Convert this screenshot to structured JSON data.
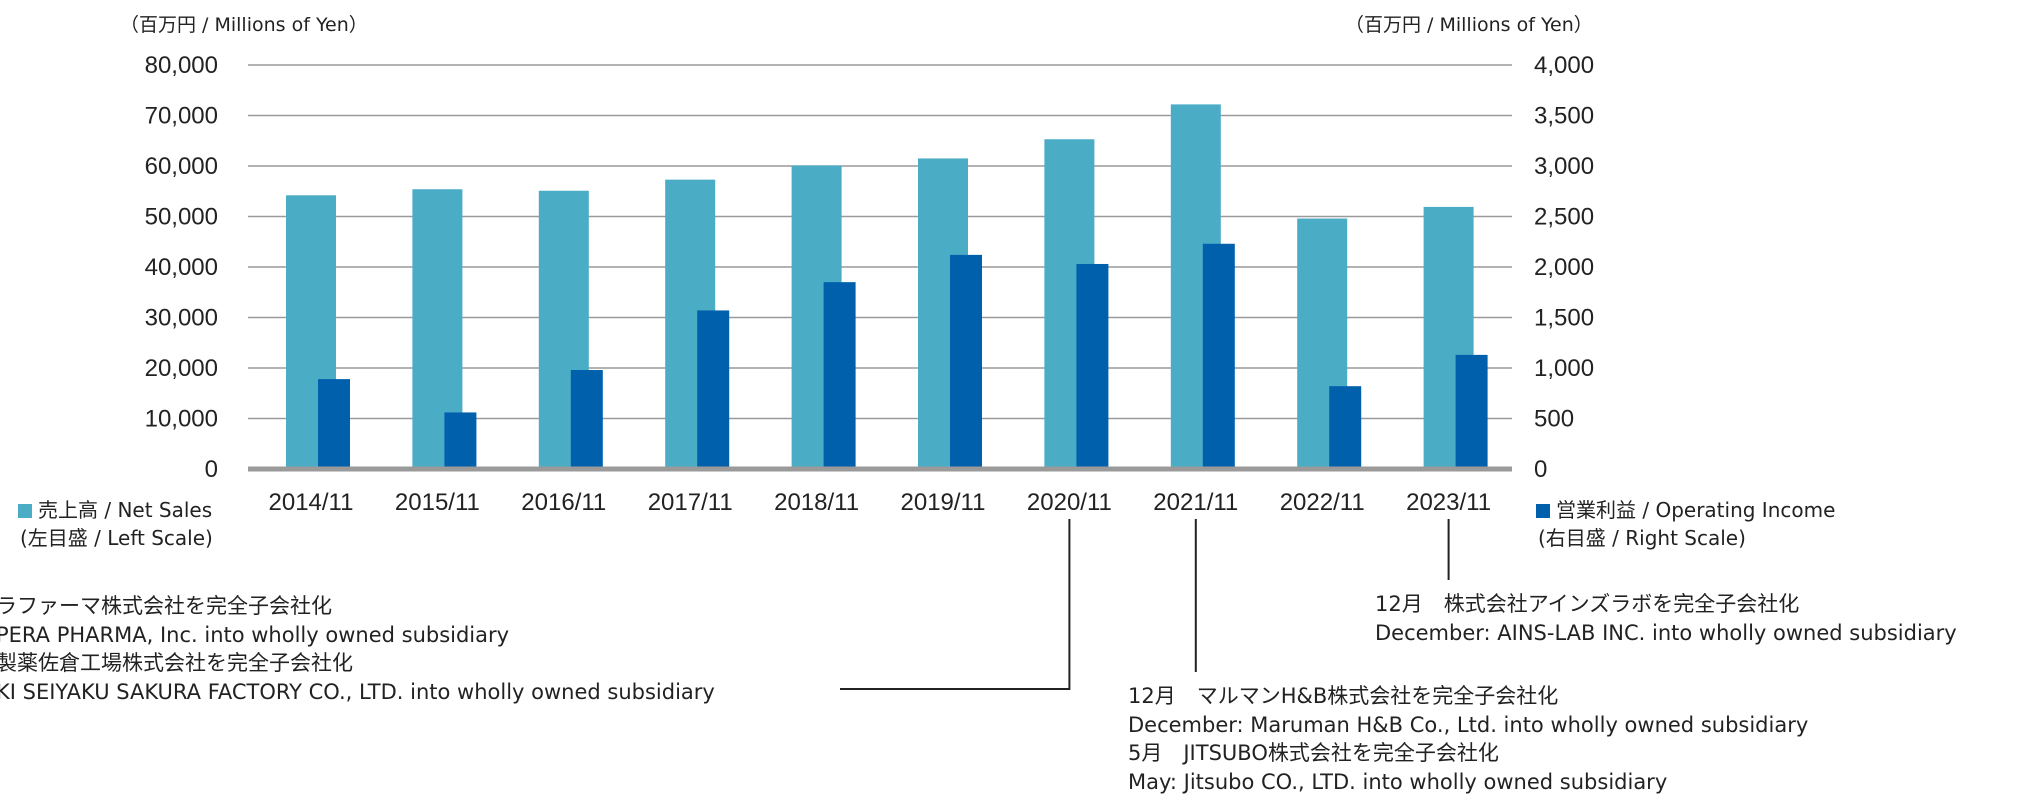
{
  "chart_data": {
    "type": "bar",
    "categories": [
      "2014/11",
      "2015/11",
      "2016/11",
      "2017/11",
      "2018/11",
      "2019/11",
      "2020/11",
      "2021/11",
      "2022/11",
      "2023/11"
    ],
    "series": [
      {
        "name": "売上高 / Net Sales",
        "axis": "left",
        "color": "#4bacc6",
        "values": [
          54200,
          55400,
          55100,
          57300,
          60100,
          61500,
          65300,
          72200,
          49600,
          51900
        ]
      },
      {
        "name": "営業利益 / Operating Income",
        "axis": "right",
        "color": "#0060ac",
        "values": [
          890,
          560,
          980,
          1570,
          1850,
          2120,
          2030,
          2230,
          820,
          1130
        ]
      }
    ],
    "left_axis": {
      "unit": "（百万円 / Millions of Yen）",
      "min": 0,
      "max": 80000,
      "step": 10000,
      "ticks": [
        "0",
        "10,000",
        "20,000",
        "30,000",
        "40,000",
        "50,000",
        "60,000",
        "70,000",
        "80,000"
      ]
    },
    "right_axis": {
      "unit": "（百万円 / Millions of Yen）",
      "min": 0,
      "max": 4000,
      "step": 500,
      "ticks": [
        "0",
        "500",
        "1,000",
        "1,500",
        "2,000",
        "2,500",
        "3,000",
        "3,500",
        "4,000"
      ]
    },
    "grid": true
  },
  "legend": {
    "left": {
      "label": "売上高 / Net Sales",
      "scale": "(左目盛 / Left Scale)",
      "color": "#4bacc6"
    },
    "right": {
      "label": "営業利益 / Operating Income",
      "scale": "(右目盛 / Right Scale)",
      "color": "#0060ac"
    }
  },
  "annotations": {
    "a2020": [
      "ラファーマ株式会社を完全子会社化",
      "PERA PHARMA, Inc. into wholly owned subsidiary",
      "製薬佐倉工場株式会社を完全子会社化",
      "KI SEIYAKU SAKURA FACTORY CO., LTD. into wholly owned subsidiary"
    ],
    "a2021": [
      "12月　マルマンH&B株式会社を完全子会社化",
      "December: Maruman H&B Co., Ltd. into wholly owned subsidiary",
      "5月　JITSUBO株式会社を完全子会社化",
      "May: Jitsubo CO., LTD. into wholly owned subsidiary"
    ],
    "a2023": [
      "12月　株式会社アインズラボを完全子会社化",
      "December: AINS-LAB INC. into wholly owned subsidiary"
    ]
  }
}
